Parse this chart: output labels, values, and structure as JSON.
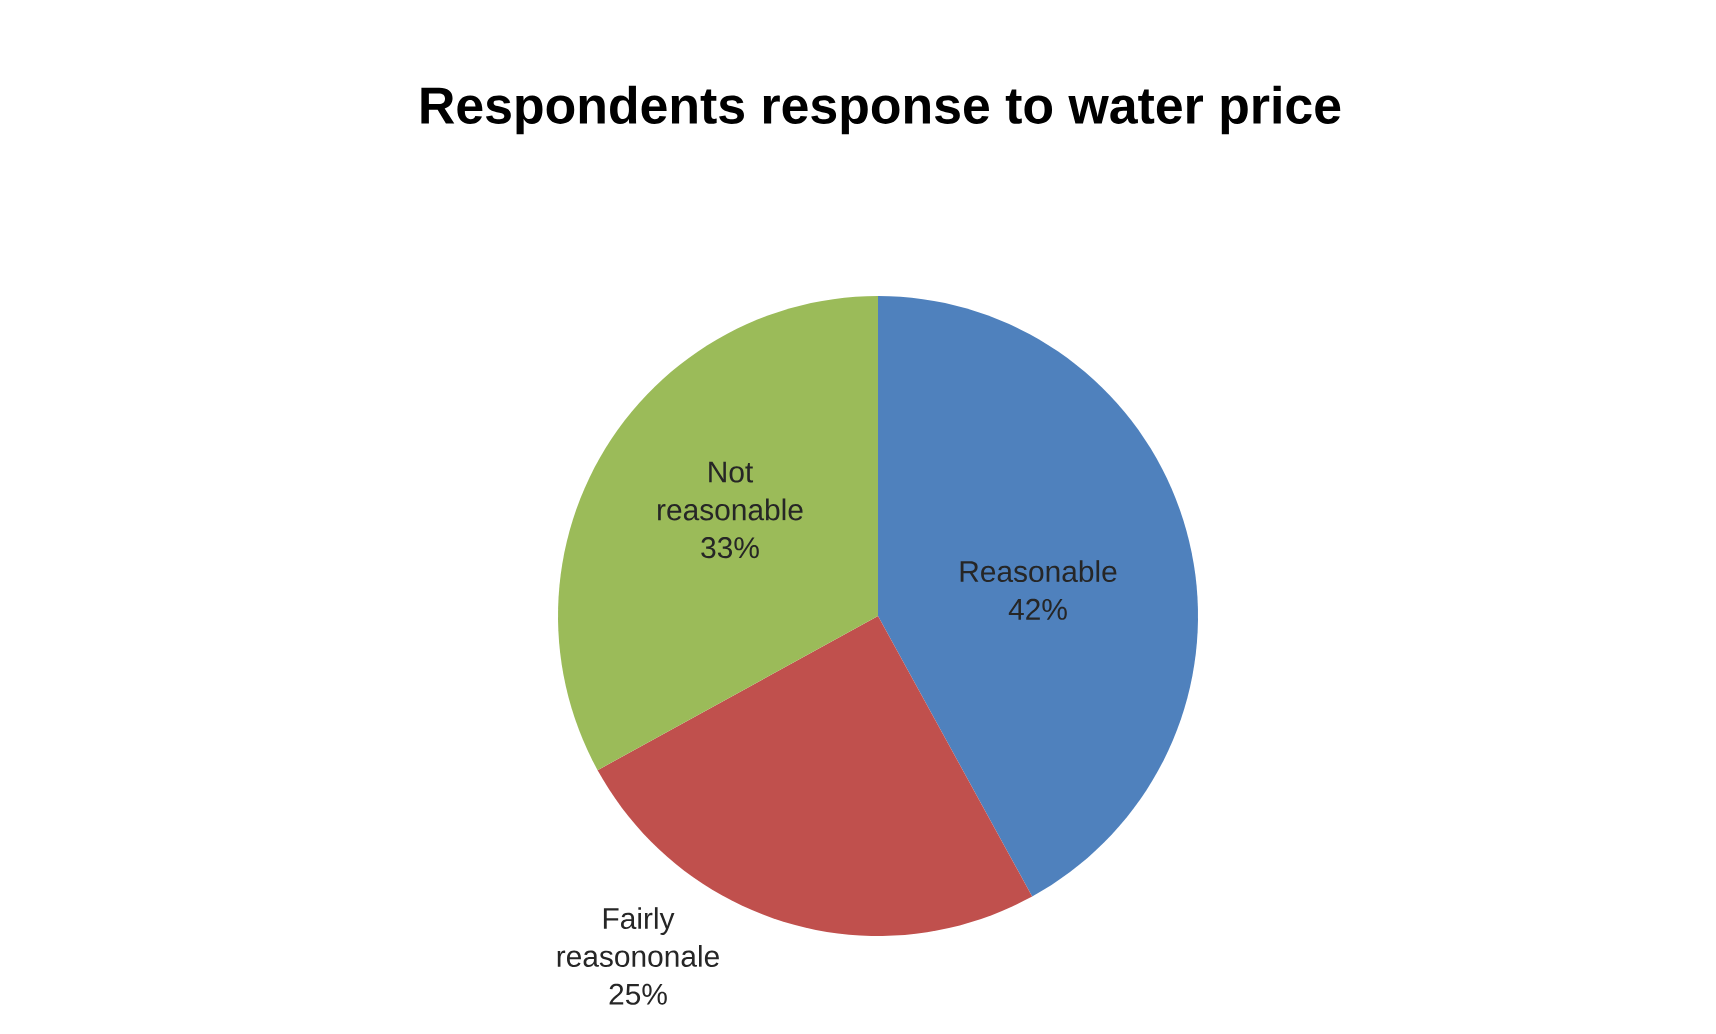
{
  "chart_data": {
    "type": "pie",
    "title": "Respondents response to water price",
    "categories": [
      "Reasonable",
      "Fairly reasononale",
      "Not reasonable"
    ],
    "values": [
      42,
      25,
      33
    ],
    "value_labels": [
      "42%",
      "25%",
      "33%"
    ],
    "colors": [
      "#4f81bd",
      "#c0504d",
      "#9bbb59"
    ],
    "data_labels": true
  }
}
